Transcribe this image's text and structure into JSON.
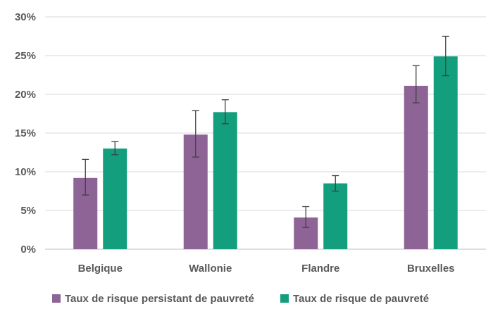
{
  "chart_data": {
    "type": "bar",
    "categories": [
      "Belgique",
      "Wallonie",
      "Flandre",
      "Bruxelles"
    ],
    "series": [
      {
        "name": "Taux de risque persistant de pauvreté",
        "values": [
          9.2,
          14.8,
          4.1,
          21.1
        ],
        "error_low": [
          7.0,
          11.9,
          2.8,
          18.9
        ],
        "error_high": [
          11.6,
          17.9,
          5.5,
          23.7
        ],
        "color": "#8e6497"
      },
      {
        "name": "Taux de risque de pauvreté",
        "values": [
          13.0,
          17.7,
          8.5,
          24.9
        ],
        "error_low": [
          12.2,
          16.2,
          7.5,
          22.4
        ],
        "error_high": [
          13.9,
          19.3,
          9.5,
          27.5
        ],
        "color": "#139f7d"
      }
    ],
    "y_ticks": [
      "0%",
      "5%",
      "10%",
      "15%",
      "20%",
      "25%",
      "30%"
    ],
    "ylim": [
      0,
      30
    ],
    "grid": true,
    "legend_position": "bottom",
    "error_bars": true
  }
}
